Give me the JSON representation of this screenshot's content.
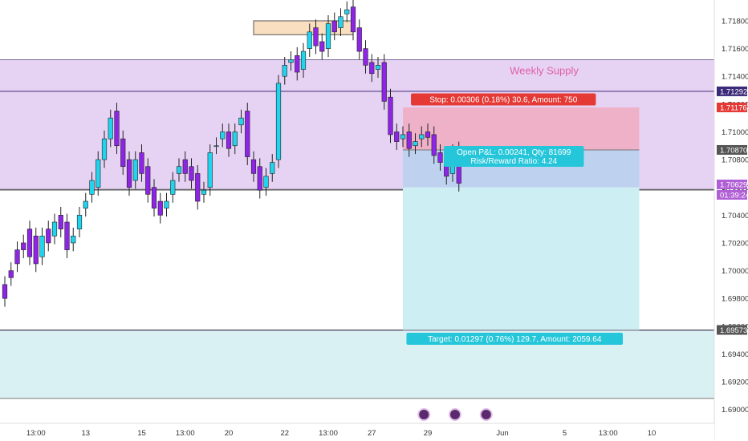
{
  "chart_data": {
    "type": "candlestick",
    "y_axis": {
      "range": [
        1.689,
        1.7195
      ],
      "ticks": [
        "1.71800",
        "1.71600",
        "1.71400",
        "1.71200",
        "1.71000",
        "1.70800",
        "1.70600",
        "1.70400",
        "1.70200",
        "1.70000",
        "1.69800",
        "1.69600",
        "1.69400",
        "1.69200",
        "1.69000"
      ],
      "tick_values": [
        1.718,
        1.716,
        1.714,
        1.712,
        1.71,
        1.708,
        1.706,
        1.704,
        1.702,
        1.7,
        1.698,
        1.696,
        1.694,
        1.692,
        1.69
      ]
    },
    "x_axis": {
      "ticks": [
        "13:00",
        "13",
        "15",
        "13:00",
        "20",
        "22",
        "13:00",
        "27",
        "29",
        "Jun",
        "5",
        "13:00",
        "10"
      ],
      "tick_bar_index": [
        5,
        13,
        22,
        29,
        36,
        45,
        52,
        59,
        68,
        80,
        90,
        97,
        104
      ]
    },
    "zones": [
      {
        "label": "Weekly Supply",
        "top": 1.7152,
        "bottom": 1.7058,
        "color": "#e6d3f3"
      },
      {
        "label": "",
        "top": 1.6957,
        "bottom": 1.6908,
        "color": "#daf1f4"
      }
    ],
    "horizontal_lines": [
      {
        "value": 1.71292,
        "label": "1.71292",
        "color": "#3b2a7a"
      },
      {
        "value": 1.70585,
        "label": "",
        "color": "#555555"
      },
      {
        "value": 1.69573,
        "label": "1.69573",
        "color": "#555555"
      }
    ],
    "price_labels": [
      {
        "value": "1.71176",
        "bg": "#e53935",
        "fg": "#ffffff"
      },
      {
        "value": "1.70870",
        "bg": "#555555",
        "fg": "#ffffff"
      },
      {
        "value": "1.70629",
        "bg": "#b15fd6",
        "fg": "#ffffff"
      },
      {
        "value": "01:39:24",
        "bg": "#b15fd6",
        "fg": "#ffffff"
      }
    ],
    "position": {
      "entry": 1.7087,
      "stop": 1.71176,
      "target": 1.69573,
      "stop_label": "Stop: 0.00306 (0.18%) 30.6, Amount: 750",
      "pnl_label": "Open P&L: 0.00241, Qty: 81699",
      "rr_label": "Risk/Reward Ratio: 4.24",
      "target_label": "Target: 0.01297 (0.76%) 129.7, Amount: 2059.64",
      "start_bar": 64,
      "end_bar": 102
    },
    "highlight_box": {
      "top": 1.718,
      "bottom": 1.717,
      "start_bar": 40,
      "end_bar": 56,
      "color": "#f9dfbf"
    },
    "event_icons_bar_index": [
      67,
      72,
      77
    ],
    "series": {
      "open": [
        1.699,
        1.7,
        1.7015,
        1.702,
        1.703,
        1.7025,
        1.701,
        1.703,
        1.7025,
        1.704,
        1.7035,
        1.702,
        1.703,
        1.7045,
        1.7055,
        1.706,
        1.708,
        1.7095,
        1.7115,
        1.7095,
        1.708,
        1.7065,
        1.7085,
        1.7075,
        1.706,
        1.705,
        1.7045,
        1.7055,
        1.707,
        1.708,
        1.7075,
        1.707,
        1.7055,
        1.706,
        1.709,
        1.7095,
        1.71,
        1.709,
        1.7105,
        1.7115,
        1.708,
        1.7075,
        1.706,
        1.707,
        1.708,
        1.714,
        1.715,
        1.7155,
        1.7145,
        1.716,
        1.7175,
        1.7165,
        1.716,
        1.718,
        1.7175,
        1.7185,
        1.719,
        1.7175,
        1.716,
        1.715,
        1.7145,
        1.715,
        1.7125,
        1.71,
        1.7095,
        1.71,
        1.709,
        1.7095,
        1.71,
        1.7098,
        1.7085,
        1.708,
        1.707,
        1.7087
      ],
      "close": [
        1.698,
        1.6995,
        1.7005,
        1.7015,
        1.701,
        1.7005,
        1.7025,
        1.702,
        1.7035,
        1.703,
        1.7015,
        1.7025,
        1.704,
        1.705,
        1.7065,
        1.708,
        1.7095,
        1.711,
        1.709,
        1.7075,
        1.706,
        1.708,
        1.707,
        1.7055,
        1.7045,
        1.704,
        1.705,
        1.7065,
        1.7075,
        1.707,
        1.7065,
        1.705,
        1.7058,
        1.7085,
        1.709,
        1.71,
        1.7088,
        1.71,
        1.711,
        1.7082,
        1.707,
        1.7058,
        1.7068,
        1.7078,
        1.7135,
        1.7148,
        1.7152,
        1.7143,
        1.7158,
        1.7172,
        1.7162,
        1.7158,
        1.7178,
        1.7172,
        1.7183,
        1.7188,
        1.7172,
        1.7158,
        1.7148,
        1.7142,
        1.7148,
        1.7122,
        1.7098,
        1.7093,
        1.7098,
        1.7088,
        1.7093,
        1.7098,
        1.7096,
        1.7083,
        1.7078,
        1.7068,
        1.7085,
        1.7063
      ]
    }
  }
}
